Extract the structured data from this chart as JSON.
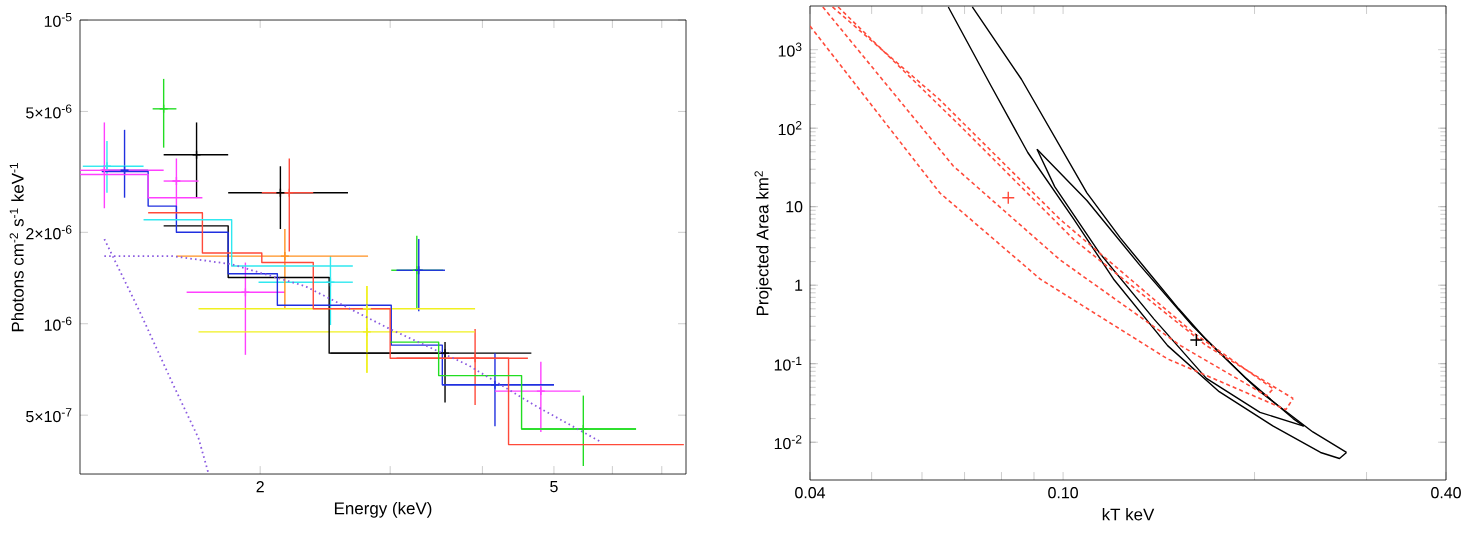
{
  "chart_data": [
    {
      "type": "scatter",
      "xlabel": "Energy (keV)",
      "ylabel": "Photons cm$^{-2}$ s$^{-1}$ keV$^{-1}$",
      "log": "xy",
      "marker": "none",
      "xlim": [
        1.14,
        7.55
      ],
      "ylim": [
        3.2e-07,
        1e-05
      ],
      "xticks": [
        2,
        {
          "value": 3,
          "label": null
        },
        {
          "value": 4,
          "label": null
        },
        5,
        {
          "value": 6,
          "label": null
        },
        {
          "value": 7,
          "label": null
        }
      ],
      "yticks": [
        {
          "value": 5e-07,
          "label": "5×10$^{-7}$"
        },
        {
          "value": 1e-06,
          "label": "10$^{-6}$"
        },
        {
          "value": 2e-06,
          "label": "2×10$^{-6}$"
        },
        {
          "value": 5e-06,
          "label": "5×10$^{-6}$"
        },
        {
          "value": 1e-05,
          "label": "10$^{-5}$"
        }
      ],
      "series": [
        {
          "marker": "cross",
          "color": "#000000",
          "x": [
            1.64,
            2.13,
            3.56
          ],
          "values": [
            3.6e-06,
            2.7e-06,
            8e-07
          ],
          "xerrors": [
            [
              1.48,
              1.81
            ],
            [
              1.81,
              2.63
            ],
            [
              2.49,
              4.66
            ]
          ],
          "errors": [
            [
              2.6e-06,
              4.6e-06
            ],
            [
              2.05e-06,
              3.3e-06
            ],
            [
              5.5e-07,
              8.7e-07
            ]
          ]
        },
        {
          "marker": "cross",
          "color": "#ff4a3a",
          "x": [
            2.19,
            3.91
          ],
          "values": [
            2.7e-06,
            7.7e-07
          ],
          "xerrors": [
            [
              2.01,
              2.36
            ],
            [
              3.06,
              4.61
            ]
          ],
          "errors": [
            [
              1.73e-06,
              3.5e-06
            ],
            [
              5.4e-07,
              9.6e-07
            ]
          ]
        },
        {
          "marker": "cross",
          "color": "#22dd22",
          "x": [
            1.48,
            3.26,
            5.48
          ],
          "values": [
            5.1e-06,
            1.5e-06,
            4.5e-07
          ],
          "xerrors": [
            [
              1.43,
              1.54
            ],
            [
              3.01,
              3.54
            ],
            [
              4.52,
              6.46
            ]
          ],
          "errors": [
            [
              3.8e-06,
              6.4e-06
            ],
            [
              1.12e-06,
              1.95e-06
            ],
            [
              3.4e-07,
              5.8e-07
            ]
          ]
        },
        {
          "marker": "cross",
          "color": "#2030e0",
          "x": [
            1.31,
            3.28,
            4.16
          ],
          "values": [
            3.2e-06,
            1.5e-06,
            6.3e-07
          ],
          "xerrors": [
            [
              1.22,
              1.41
            ],
            [
              3.06,
              3.56
            ],
            [
              3.53,
              5.0
            ]
          ],
          "errors": [
            [
              2.6e-06,
              4.35e-06
            ],
            [
              1.1e-06,
              1.9e-06
            ],
            [
              4.6e-07,
              8e-07
            ]
          ]
        },
        {
          "marker": "cross",
          "color": "#30e8f0",
          "x": [
            1.24,
            2.49
          ],
          "values": [
            3.3e-06,
            1.37e-06
          ],
          "xerrors": [
            [
              1.15,
              1.39
            ],
            [
              1.99,
              2.67
            ]
          ],
          "errors": [
            [
              2.7e-06,
              4e-06
            ],
            [
              9.9e-07,
              1.67e-06
            ]
          ]
        },
        {
          "marker": "cross",
          "color": "#ff40ff",
          "x": [
            1.23,
            1.54,
            1.91,
            4.8
          ],
          "values": [
            3.2e-06,
            2.95e-06,
            1.27e-06,
            6e-07
          ],
          "xerrors": [
            [
              1.14,
              1.48
            ],
            [
              1.48,
              1.65
            ],
            [
              1.59,
              2.16
            ],
            [
              4.16,
              5.43
            ]
          ],
          "errors": [
            [
              2.4e-06,
              4.6e-06
            ],
            [
              2.2e-06,
              3.5e-06
            ],
            [
              7.9e-07,
              1.59e-06
            ],
            [
              4.4e-07,
              7.5e-07
            ]
          ]
        },
        {
          "marker": "cross",
          "color": "#ff9020",
          "x": [
            2.16
          ],
          "values": [
            1.67e-06
          ],
          "xerrors": [
            [
              1.54,
              2.8
            ]
          ],
          "errors": [
            [
              1.12e-06,
              2.05e-06
            ]
          ]
        },
        {
          "marker": "cross",
          "color": "#f0f020",
          "x": [
            2.79,
            2.79
          ],
          "values": [
            1.12e-06,
            9.4e-07
          ],
          "xerrors": [
            [
              1.65,
              3.91
            ],
            [
              1.65,
              3.91
            ]
          ],
          "errors": [
            [
              6.9e-07,
              1.33e-06
            ],
            [
              6.9e-07,
              1.33e-06
            ]
          ]
        },
        {
          "type": "step",
          "color": "#000000",
          "x": [
            1.48,
            1.81,
            2.48,
            3.56
          ],
          "values": [
            2.1e-06,
            1.42e-06,
            8e-07,
            8e-07
          ]
        },
        {
          "type": "step",
          "color": "#2030e0",
          "x": [
            1.22,
            1.41,
            1.54,
            1.81,
            2.11,
            3.01,
            3.53,
            5.0
          ],
          "values": [
            3.17e-06,
            2.44e-06,
            2e-06,
            1.46e-06,
            1.15e-06,
            8.5e-07,
            6.3e-07,
            6.3e-07
          ]
        },
        {
          "type": "step",
          "color": "#ff4a3a",
          "x": [
            1.41,
            1.67,
            2.01,
            2.36,
            3.0,
            4.34,
            7.5
          ],
          "values": [
            2.32e-06,
            1.71e-06,
            1.59e-06,
            1.12e-06,
            7.7e-07,
            4e-07,
            4e-07
          ]
        },
        {
          "type": "step",
          "color": "#22dd22",
          "x": [
            3.0,
            3.49,
            4.52,
            6.46
          ],
          "values": [
            8.7e-07,
            6.75e-07,
            4.5e-07,
            4.5e-07
          ]
        },
        {
          "type": "step",
          "color": "#30e8f0",
          "x": [
            1.39,
            1.83,
            2.67
          ],
          "values": [
            2.2e-06,
            1.55e-06,
            1.55e-06
          ]
        },
        {
          "type": "step",
          "color": "#ff40ff",
          "x": [
            1.14,
            1.41,
            1.67
          ],
          "values": [
            3.1e-06,
            2.6e-06,
            2.6e-06
          ]
        },
        {
          "type": "line",
          "color": "#8a5ae0",
          "line_style": "dotted",
          "x": [
            1.23,
            1.52,
            1.83,
            2.3,
            3.0,
            3.83,
            4.7,
            5.77
          ],
          "values": [
            1.67e-06,
            1.67e-06,
            1.57e-06,
            1.33e-06,
            9.6e-07,
            7.3e-07,
            5.4e-07,
            4.1e-07
          ]
        },
        {
          "type": "line",
          "color": "#8a5ae0",
          "line_style": "dotted",
          "x": [
            1.23,
            1.375,
            1.52,
            1.65,
            1.7
          ],
          "values": [
            1.9e-06,
            1.09e-06,
            6.4e-07,
            4.2e-07,
            3.25e-07
          ]
        }
      ]
    },
    {
      "type": "line",
      "xlabel": "kT  keV",
      "ylabel": "Projected Area km$^{2}$",
      "log": "xy",
      "marker": "none",
      "xlim": [
        0.04,
        0.4
      ],
      "ylim": [
        0.0033,
        3600
      ],
      "xticks": [
        0.04,
        {
          "value": 0.05,
          "label": null
        },
        {
          "value": 0.06,
          "label": null
        },
        {
          "value": 0.07,
          "label": null
        },
        {
          "value": 0.08,
          "label": null
        },
        {
          "value": 0.09,
          "label": null
        },
        {
          "value": 0.1,
          "label": "0.10"
        },
        {
          "value": 0.2,
          "label": null
        },
        {
          "value": 0.3,
          "label": null
        },
        {
          "value": 0.4,
          "label": "0.40"
        }
      ],
      "yticks": [
        {
          "value": 0.01,
          "label": "10$^{-2}$"
        },
        {
          "value": 0.1,
          "label": "10$^{-1}$"
        },
        1,
        10,
        {
          "value": 100,
          "label": "10$^{2}$"
        },
        {
          "value": 1000,
          "label": "10$^{3}$"
        }
      ],
      "series": [
        {
          "color": "#000000",
          "line_style": "solid",
          "x": [
            0.066,
            0.077,
            0.088,
            0.104,
            0.12,
            0.146,
            0.176,
            0.214,
            0.254,
            0.272,
            0.279
          ],
          "values": [
            3500,
            350,
            49,
            6.9,
            1.2,
            0.17,
            0.044,
            0.016,
            0.0074,
            0.0062,
            0.0074
          ]
        },
        {
          "color": "#000000",
          "line_style": "solid",
          "x": [
            0.072,
            0.086,
            0.109,
            0.123,
            0.139,
            0.152,
            0.168,
            0.204,
            0.247,
            0.279
          ],
          "values": [
            3500,
            420,
            15,
            4,
            1.2,
            0.5,
            0.2,
            0.044,
            0.0135,
            0.0074
          ]
        },
        {
          "color": "#000000",
          "line_style": "solid",
          "x": [
            0.091,
            0.097,
            0.114,
            0.139,
            0.168,
            0.204,
            0.239
          ],
          "values": [
            54,
            18,
            2.6,
            0.37,
            0.065,
            0.024,
            0.016
          ]
        },
        {
          "color": "#000000",
          "line_style": "solid",
          "x": [
            0.091,
            0.109,
            0.132,
            0.16,
            0.194,
            0.23,
            0.239
          ],
          "values": [
            54,
            12,
            1.8,
            0.3,
            0.065,
            0.02,
            0.016
          ]
        },
        {
          "color": "#ff4a3a",
          "line_style": "dashed",
          "x": [
            0.04,
            0.064,
            0.092,
            0.146,
            0.224,
            0.23
          ],
          "values": [
            2000,
            15,
            1.2,
            0.115,
            0.026,
            0.036
          ]
        },
        {
          "color": "#ff4a3a",
          "line_style": "dashed",
          "x": [
            0.0443,
            0.0689,
            0.104,
            0.168,
            0.23
          ],
          "values": [
            3500,
            107,
            3.8,
            0.17,
            0.036
          ]
        },
        {
          "color": "#ff4a3a",
          "line_style": "dashed",
          "x": [
            0.0419,
            0.0672,
            0.0989,
            0.153,
            0.209,
            0.214
          ],
          "values": [
            3500,
            33,
            2.1,
            0.17,
            0.039,
            0.048
          ]
        },
        {
          "color": "#ff4a3a",
          "line_style": "dashed",
          "x": [
            0.0434,
            0.064,
            0.0989,
            0.16,
            0.214
          ],
          "values": [
            3500,
            230,
            6.9,
            0.25,
            0.048
          ]
        },
        {
          "type": "scatter",
          "marker": "cross",
          "colors": [
            "#ff4a3a",
            "#000000"
          ],
          "x": [
            0.082,
            0.162
          ],
          "values": [
            13,
            0.2
          ]
        }
      ]
    }
  ]
}
